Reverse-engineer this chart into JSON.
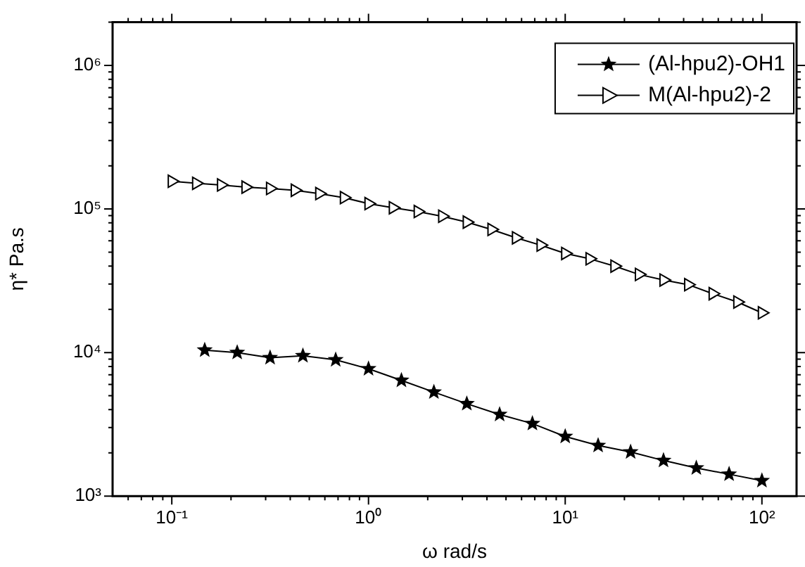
{
  "chart_data": {
    "type": "line",
    "xlabel": "ω rad/s",
    "ylabel": "η* Pa.s",
    "log": "xy",
    "legend": "top right",
    "line_style": "solid",
    "xlim": [
      0.05,
      150
    ],
    "ylim": [
      1000,
      2000000
    ],
    "xticks": [
      {
        "value": 0.06,
        "label": null
      },
      {
        "value": 0.07,
        "label": null
      },
      {
        "value": 0.08,
        "label": null
      },
      {
        "value": 0.09,
        "label": null
      },
      {
        "value": 0.1,
        "label": "10⁻¹"
      },
      {
        "value": 0.2,
        "label": null
      },
      {
        "value": 0.3,
        "label": null
      },
      {
        "value": 0.4,
        "label": null
      },
      {
        "value": 0.5,
        "label": null
      },
      {
        "value": 0.6,
        "label": null
      },
      {
        "value": 0.7,
        "label": null
      },
      {
        "value": 0.8,
        "label": null
      },
      {
        "value": 0.9,
        "label": null
      },
      {
        "value": 1,
        "label": "10⁰"
      },
      {
        "value": 2,
        "label": null
      },
      {
        "value": 3,
        "label": null
      },
      {
        "value": 4,
        "label": null
      },
      {
        "value": 5,
        "label": null
      },
      {
        "value": 6,
        "label": null
      },
      {
        "value": 7,
        "label": null
      },
      {
        "value": 8,
        "label": null
      },
      {
        "value": 9,
        "label": null
      },
      {
        "value": 10,
        "label": "10¹"
      },
      {
        "value": 20,
        "label": null
      },
      {
        "value": 30,
        "label": null
      },
      {
        "value": 40,
        "label": null
      },
      {
        "value": 50,
        "label": null
      },
      {
        "value": 60,
        "label": null
      },
      {
        "value": 70,
        "label": null
      },
      {
        "value": 80,
        "label": null
      },
      {
        "value": 90,
        "label": null
      },
      {
        "value": 100,
        "label": "10²"
      }
    ],
    "yticks": [
      {
        "value": 1000,
        "label": "10³"
      },
      {
        "value": 2000,
        "label": null
      },
      {
        "value": 3000,
        "label": null
      },
      {
        "value": 4000,
        "label": null
      },
      {
        "value": 5000,
        "label": null
      },
      {
        "value": 6000,
        "label": null
      },
      {
        "value": 7000,
        "label": null
      },
      {
        "value": 8000,
        "label": null
      },
      {
        "value": 9000,
        "label": null
      },
      {
        "value": 10000,
        "label": "10⁴"
      },
      {
        "value": 20000,
        "label": null
      },
      {
        "value": 30000,
        "label": null
      },
      {
        "value": 40000,
        "label": null
      },
      {
        "value": 50000,
        "label": null
      },
      {
        "value": 60000,
        "label": null
      },
      {
        "value": 70000,
        "label": null
      },
      {
        "value": 80000,
        "label": null
      },
      {
        "value": 90000,
        "label": null
      },
      {
        "value": 100000,
        "label": "10⁵"
      },
      {
        "value": 200000,
        "label": null
      },
      {
        "value": 300000,
        "label": null
      },
      {
        "value": 400000,
        "label": null
      },
      {
        "value": 500000,
        "label": null
      },
      {
        "value": 600000,
        "label": null
      },
      {
        "value": 700000,
        "label": null
      },
      {
        "value": 800000,
        "label": null
      },
      {
        "value": 900000,
        "label": null
      },
      {
        "value": 1000000,
        "label": "10⁶"
      },
      {
        "value": 2000000,
        "label": null
      }
    ],
    "series": [
      {
        "name": "(Al-hpu2)-OH1",
        "color": "#000000",
        "marker": "star",
        "x": [
          0.147,
          0.215,
          0.316,
          0.464,
          0.681,
          1,
          1.47,
          2.15,
          3.16,
          4.64,
          6.81,
          10,
          14.7,
          21.5,
          31.6,
          46.4,
          68.1,
          100
        ],
        "values": [
          10400,
          10000,
          9200,
          9500,
          8900,
          7700,
          6400,
          5300,
          4400,
          3700,
          3200,
          2600,
          2250,
          2030,
          1770,
          1570,
          1420,
          1280
        ]
      },
      {
        "name": "M(Al-hpu2)-2",
        "color": "#000000",
        "marker": "triangle",
        "x": [
          0.1,
          0.133,
          0.178,
          0.237,
          0.316,
          0.422,
          0.562,
          0.75,
          1,
          1.33,
          1.78,
          2.37,
          3.16,
          4.22,
          5.62,
          7.5,
          10,
          13.3,
          17.8,
          23.7,
          31.6,
          42.2,
          56.2,
          75,
          100
        ],
        "values": [
          156000,
          151000,
          147000,
          142000,
          139000,
          135000,
          128000,
          120000,
          109000,
          102000,
          96000,
          89000,
          81000,
          72000,
          63000,
          56000,
          49000,
          45000,
          40000,
          35000,
          32000,
          29700,
          25700,
          22500,
          18900
        ]
      }
    ]
  }
}
